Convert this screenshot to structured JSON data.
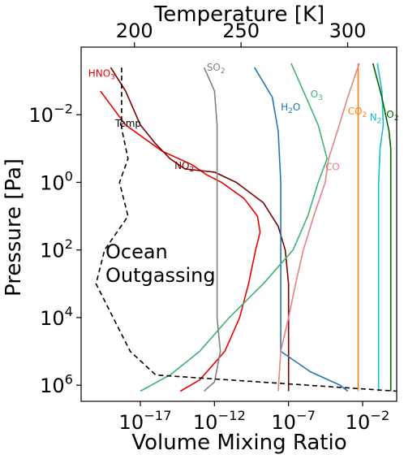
{
  "chart_data": {
    "type": "line",
    "xlabel": "Volume Mixing Ratio",
    "ylabel": "Pressure [Pa]",
    "x2label": "Temperature [K]",
    "xscale": "log",
    "yscale": "log",
    "xlim": [
      1e-21,
      2
    ],
    "ylim": [
      0.0001,
      3000000.0
    ],
    "y_inverted": true,
    "x2lim": [
      175,
      323
    ],
    "xticks": [
      {
        "value": 1e-17,
        "label": "10",
        "exp": "−17"
      },
      {
        "value": 1e-12,
        "label": "10",
        "exp": "−12"
      },
      {
        "value": 1e-07,
        "label": "10",
        "exp": "−7"
      },
      {
        "value": 0.01,
        "label": "10",
        "exp": "−2"
      }
    ],
    "yticks": [
      {
        "value": 0.01,
        "label": "10",
        "exp": "−2"
      },
      {
        "value": 1,
        "label": "10",
        "exp": "0"
      },
      {
        "value": 100,
        "label": "10",
        "exp": "2"
      },
      {
        "value": 10000,
        "label": "10",
        "exp": "4"
      },
      {
        "value": 1000000,
        "label": "10",
        "exp": "6"
      }
    ],
    "x2ticks": [
      {
        "value": 200,
        "label": "200"
      },
      {
        "value": 250,
        "label": "250"
      },
      {
        "value": 300,
        "label": "300"
      }
    ],
    "annotation": [
      "Ocean",
      "Outgassing"
    ],
    "series": [
      {
        "name": "HNO3",
        "label": "HNO",
        "sub": "3",
        "color": "#ee0000",
        "label_at": [
          3e-21,
          0.0006
        ],
        "points": [
          [
            2e-20,
            0.002
          ],
          [
            1e-18,
            0.02
          ],
          [
            3e-16,
            0.12
          ],
          [
            3e-14,
            0.3
          ],
          [
            3e-13,
            0.6
          ],
          [
            3e-12,
            1
          ],
          [
            1e-10,
            3
          ],
          [
            8e-10,
            10
          ],
          [
            1.2e-09,
            30
          ],
          [
            6e-10,
            100
          ],
          [
            2e-10,
            1000
          ],
          [
            5e-11,
            10000
          ],
          [
            5e-12,
            100000
          ],
          [
            1e-13,
            700000
          ],
          [
            5e-15,
            1500000
          ]
        ]
      },
      {
        "name": "NO2",
        "label": "NO",
        "sub": "2",
        "color": "#7b0000",
        "label_at": [
          2e-15,
          0.32
        ],
        "points": [
          [
            1e-19,
            0.0004
          ],
          [
            1e-18,
            0.002
          ],
          [
            1e-17,
            0.02
          ],
          [
            1e-16,
            0.07
          ],
          [
            1e-15,
            0.2
          ],
          [
            1e-14,
            0.4
          ],
          [
            1e-12,
            0.5
          ],
          [
            3e-11,
            1
          ],
          [
            2e-09,
            4
          ],
          [
            2e-08,
            20
          ],
          [
            6e-08,
            100
          ],
          [
            1e-07,
            1000
          ],
          [
            1e-07,
            100000
          ],
          [
            1e-07,
            1500000
          ]
        ]
      },
      {
        "name": "SO2",
        "label": "SO",
        "sub": "2",
        "color": "#808080",
        "label_at": [
          3e-13,
          0.0004
        ],
        "points": [
          [
            2e-13,
            0.0004
          ],
          [
            1e-12,
            0.002
          ],
          [
            1.5e-12,
            0.02
          ],
          [
            1.5e-12,
            10000
          ],
          [
            2.5e-12,
            100000
          ],
          [
            1e-12,
            800000
          ],
          [
            2e-13,
            1500000
          ]
        ]
      },
      {
        "name": "H2O",
        "label": "H",
        "sub": "2",
        "label_end": "O",
        "color": "#1f77b4",
        "label_at": [
          3e-08,
          0.006
        ],
        "points": [
          [
            5e-10,
            0.0004
          ],
          [
            8e-09,
            0.003
          ],
          [
            2e-08,
            0.03
          ],
          [
            3e-08,
            1
          ],
          [
            3e-08,
            100000
          ],
          [
            3e-06,
            400000
          ],
          [
            0.0003,
            1000000
          ],
          [
            0.001,
            1500000
          ]
        ]
      },
      {
        "name": "O3",
        "label": "O",
        "sub": "3",
        "color": "#3cb371",
        "label_at": [
          3e-06,
          0.0025
        ],
        "points": [
          [
            1.5e-07,
            0.0003
          ],
          [
            1e-06,
            0.002
          ],
          [
            1e-05,
            0.02
          ],
          [
            4e-05,
            0.2
          ],
          [
            1e-05,
            1
          ],
          [
            2e-06,
            10
          ],
          [
            2e-07,
            100
          ],
          [
            2e-09,
            1000
          ],
          [
            1e-11,
            10000
          ],
          [
            1e-13,
            100000
          ],
          [
            1e-15,
            500000
          ],
          [
            1e-17,
            1500000
          ]
        ]
      },
      {
        "name": "CO2",
        "label": "CO",
        "sub": "2",
        "color": "#ff7f0e",
        "label_at": [
          0.001,
          0.008
        ],
        "points": [
          [
            0.005,
            0.0003
          ],
          [
            0.005,
            1500000
          ]
        ]
      },
      {
        "name": "CO",
        "label": "CO",
        "sub": "",
        "color": "#e88080",
        "label_at": [
          3e-05,
          0.35
        ],
        "points": [
          [
            0.006,
            0.0003
          ],
          [
            0.001,
            0.003
          ],
          [
            0.0002,
            0.03
          ],
          [
            5e-05,
            0.2
          ],
          [
            3e-05,
            1
          ],
          [
            5e-06,
            10
          ],
          [
            1e-06,
            100
          ],
          [
            3e-07,
            1000
          ],
          [
            1e-07,
            10000
          ],
          [
            3e-08,
            100000
          ],
          [
            2e-08,
            1500000
          ]
        ]
      },
      {
        "name": "N2",
        "label": "N",
        "sub": "2",
        "color": "#17becf",
        "label_at": [
          0.03,
          0.012
        ],
        "points": [
          [
            0.1,
            0.0003
          ],
          [
            0.2,
            0.002
          ],
          [
            0.25,
            0.02
          ],
          [
            0.15,
            0.1
          ],
          [
            0.12,
            1
          ],
          [
            0.12,
            1500000
          ]
        ]
      },
      {
        "name": "O2",
        "label": "O",
        "sub": "2",
        "color": "#006400",
        "label_at": [
          0.4,
          0.01
        ],
        "points": [
          [
            0.05,
            0.0003
          ],
          [
            0.2,
            0.003
          ],
          [
            0.6,
            0.03
          ],
          [
            0.8,
            0.1
          ],
          [
            0.8,
            1500000
          ]
        ]
      }
    ],
    "temperature": {
      "name": "Temp",
      "label": "Temp",
      "color": "#000000",
      "label_at": [
        2e-19,
        0.018
      ],
      "points": [
        [
          194,
          0.0004
        ],
        [
          194,
          0.025
        ],
        [
          197,
          0.2
        ],
        [
          193,
          1
        ],
        [
          197,
          10
        ],
        [
          186,
          100
        ],
        [
          182,
          1000
        ],
        [
          198,
          100000
        ],
        [
          210,
          500000
        ],
        [
          323,
          1500000
        ]
      ]
    }
  }
}
